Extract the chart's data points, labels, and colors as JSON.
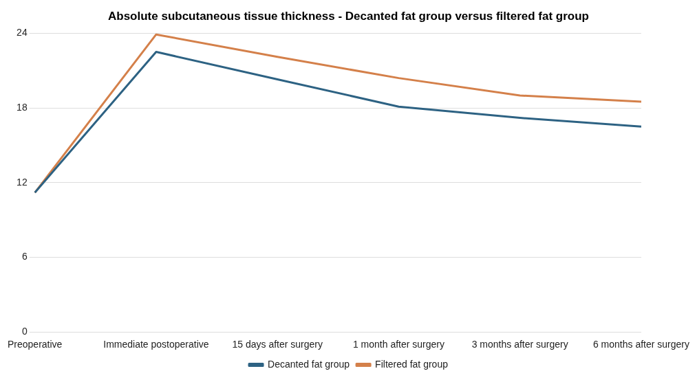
{
  "chart_data": {
    "type": "line",
    "title": "Absolute subcutaneous tissue thickness - Decanted fat group versus filtered fat group",
    "categories": [
      "Preoperative",
      "Immediate postoperative",
      "15 days after surgery",
      "1 month after surgery",
      "3 months after surgery",
      "6 months after surgery"
    ],
    "series": [
      {
        "name": "Decanted fat group",
        "color": "#2d6283",
        "values": [
          11.2,
          22.5,
          20.3,
          18.1,
          17.2,
          16.5
        ]
      },
      {
        "name": "Filtered fat group",
        "color": "#d4804a",
        "values": [
          11.2,
          23.9,
          22.1,
          20.4,
          19.0,
          18.5
        ]
      }
    ],
    "ylim": [
      0,
      24
    ],
    "yticks": [
      0,
      6,
      12,
      18,
      24
    ],
    "grid": "y",
    "legend": "bottom",
    "marker": "none",
    "line_style": "solid"
  }
}
